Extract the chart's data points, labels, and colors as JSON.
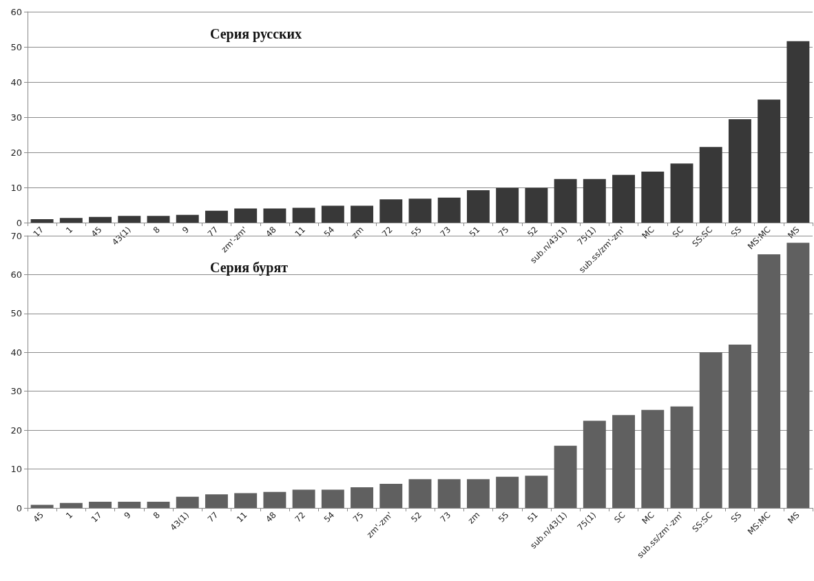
{
  "chart_data": [
    {
      "type": "bar",
      "title": "Серия русских",
      "categories": [
        "17",
        "1",
        "45",
        "43(1)",
        "8",
        "9",
        "77",
        "zm'-zm'",
        "48",
        "11",
        "54",
        "zm",
        "72",
        "55",
        "73",
        "51",
        "75",
        "52",
        "sub.n/43(1)",
        "75(1)",
        "sub.ss/zm'-zm'",
        "MC",
        "SC",
        "SS:SC",
        "SS",
        "MS:MC",
        "MS"
      ],
      "values": [
        1.0,
        1.3,
        1.6,
        1.9,
        1.9,
        2.2,
        3.4,
        4.0,
        4.0,
        4.2,
        4.8,
        4.8,
        6.6,
        6.8,
        7.1,
        9.2,
        9.9,
        9.9,
        12.4,
        12.4,
        13.6,
        14.5,
        16.8,
        21.5,
        29.4,
        35.0,
        51.6
      ],
      "color": "#383838",
      "ylim": [
        0,
        60
      ],
      "yticks": [
        0,
        10,
        20,
        30,
        40,
        50,
        60
      ],
      "grid": "y"
    },
    {
      "type": "bar",
      "title": "Серия бурят",
      "categories": [
        "45",
        "1",
        "17",
        "9",
        "8",
        "43(1)",
        "77",
        "11",
        "48",
        "72",
        "54",
        "75",
        "zm'-zm'",
        "52",
        "73",
        "zm",
        "55",
        "51",
        "sub.n/43(1)",
        "75(1)",
        "SC",
        "MC",
        "sub.ss/zm'-zm'",
        "SS:SC",
        "SS",
        "MS:MC",
        "MS"
      ],
      "values": [
        0.8,
        1.3,
        1.6,
        1.6,
        1.6,
        2.9,
        3.5,
        3.8,
        4.1,
        4.7,
        4.7,
        5.3,
        6.2,
        7.4,
        7.4,
        7.4,
        8.0,
        8.3,
        16.0,
        22.4,
        23.9,
        25.2,
        26.1,
        40.0,
        42.0,
        65.2,
        68.2
      ],
      "color": "#606060",
      "ylim": [
        0,
        70
      ],
      "yticks": [
        0,
        10,
        20,
        30,
        40,
        50,
        60,
        70
      ],
      "grid": "y"
    }
  ]
}
